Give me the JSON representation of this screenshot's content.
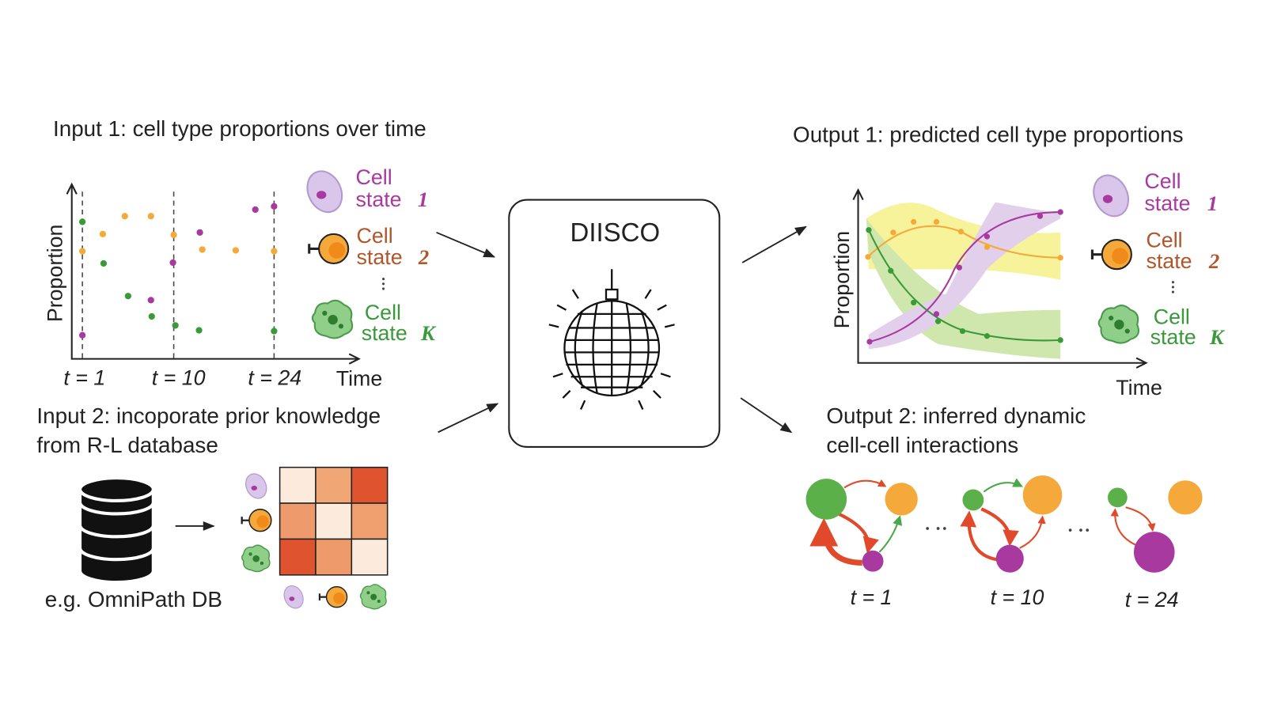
{
  "input1": {
    "title": "Input 1: cell type proportions over time",
    "y_label": "Proportion",
    "x_label": "Time",
    "time_labels": [
      "t = 1",
      "t = 10",
      "t = 24"
    ],
    "legend": [
      {
        "word": "Cell",
        "state": "state",
        "index": "1"
      },
      {
        "word": "Cell",
        "state": "state",
        "index": "2"
      },
      {
        "word": "Cell",
        "state": "state",
        "index": "K"
      }
    ]
  },
  "input2": {
    "title_lines": [
      "Input 2: incoporate prior knowledge",
      "from R-L database"
    ],
    "db_label": "e.g. OmniPath DB"
  },
  "model": {
    "name": "DIISCO"
  },
  "output1": {
    "title": "Output 1: predicted cell type proportions",
    "y_label": "Proportion",
    "x_label": "Time",
    "legend": [
      {
        "word": "Cell",
        "state": "state",
        "index": "1"
      },
      {
        "word": "Cell",
        "state": "state",
        "index": "2"
      },
      {
        "word": "Cell",
        "state": "state",
        "index": "K"
      }
    ]
  },
  "output2": {
    "title_lines": [
      "Output 2: inferred dynamic",
      "cell-cell interactions"
    ],
    "time_labels": [
      "t = 1",
      "t = 10",
      "t = 24"
    ]
  }
}
